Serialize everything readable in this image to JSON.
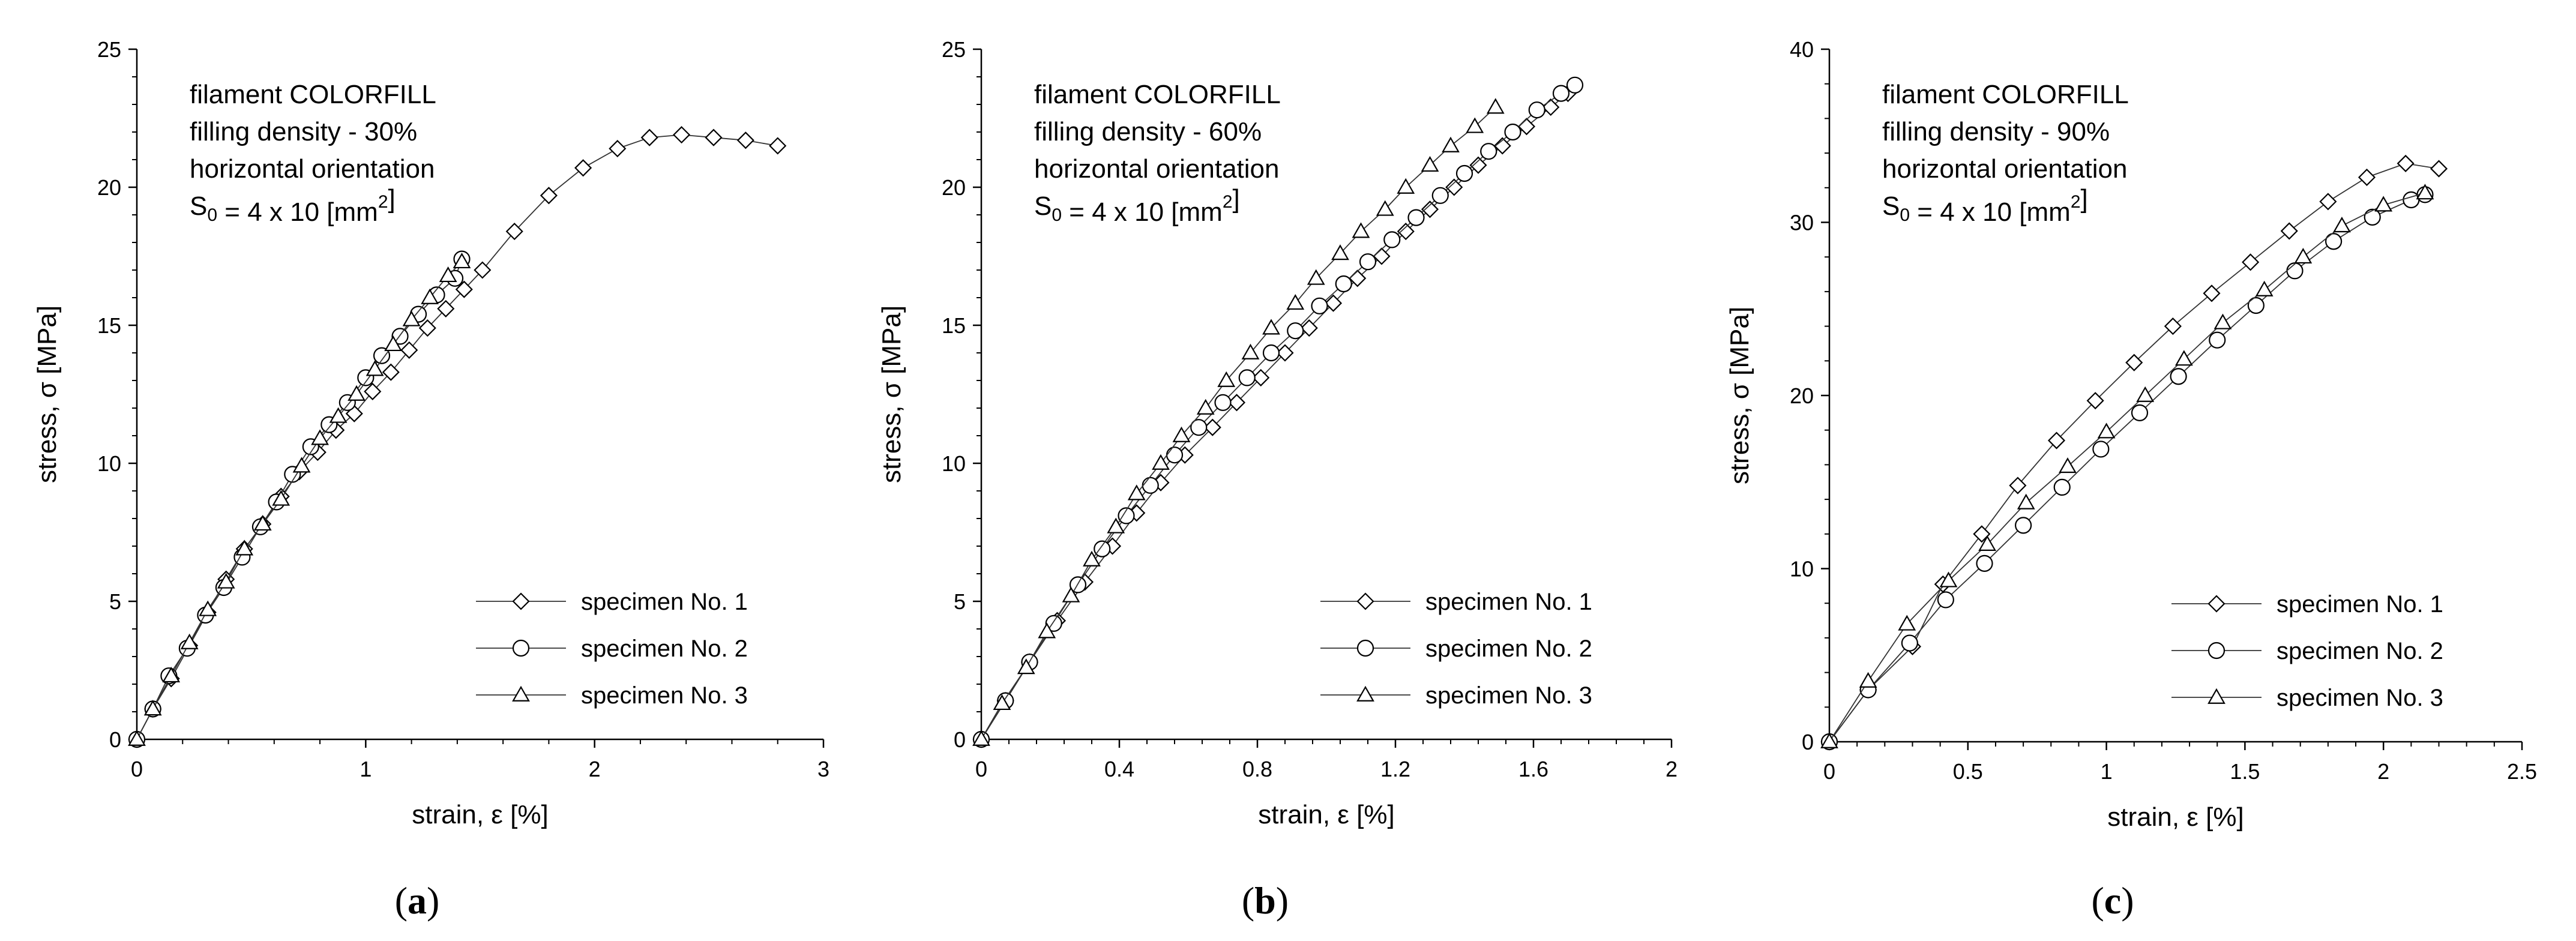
{
  "legend_labels": [
    "specimen No. 1",
    "specimen No. 2",
    "specimen No. 3"
  ],
  "chart_data": [
    {
      "type": "line",
      "caption": "a",
      "info": [
        "filament COLORFILL",
        "filling density - 30%",
        "horizontal orientation",
        "S",
        "0",
        " = 4 x 10 [mm",
        "2",
        "]"
      ],
      "xlabel": "strain, ε [%]",
      "ylabel": "stress, σ [MPa]",
      "xlim": [
        0,
        3
      ],
      "ylim": [
        0,
        25
      ],
      "xticks": [
        0,
        1,
        2,
        3
      ],
      "xtick_labels": [
        "0",
        "1",
        "2",
        "3"
      ],
      "yticks": [
        0,
        5,
        10,
        15,
        20,
        25
      ],
      "ytick_labels": [
        "0",
        "5",
        "10",
        "15",
        "20",
        "25"
      ],
      "series": [
        {
          "name": "specimen No. 1",
          "marker": "diamond",
          "x": [
            0,
            0.07,
            0.15,
            0.23,
            0.31,
            0.39,
            0.47,
            0.55,
            0.63,
            0.71,
            0.79,
            0.87,
            0.95,
            1.03,
            1.11,
            1.19,
            1.27,
            1.35,
            1.43,
            1.51,
            1.65,
            1.8,
            1.95,
            2.1,
            2.24,
            2.38,
            2.52,
            2.66,
            2.8
          ],
          "y": [
            0,
            1.1,
            2.2,
            3.4,
            4.6,
            5.8,
            6.9,
            7.8,
            8.8,
            9.7,
            10.4,
            11.2,
            11.8,
            12.6,
            13.3,
            14.1,
            14.9,
            15.6,
            16.3,
            17.0,
            18.4,
            19.7,
            20.7,
            21.4,
            21.8,
            21.9,
            21.8,
            21.7,
            21.5
          ]
        },
        {
          "name": "specimen No. 2",
          "marker": "circle",
          "x": [
            0,
            0.07,
            0.14,
            0.22,
            0.3,
            0.38,
            0.46,
            0.54,
            0.61,
            0.68,
            0.76,
            0.84,
            0.92,
            1.0,
            1.07,
            1.15,
            1.23,
            1.31,
            1.39,
            1.42
          ],
          "y": [
            0,
            1.1,
            2.3,
            3.3,
            4.5,
            5.5,
            6.6,
            7.7,
            8.6,
            9.6,
            10.6,
            11.4,
            12.2,
            13.1,
            13.9,
            14.6,
            15.4,
            16.1,
            16.7,
            17.4
          ]
        },
        {
          "name": "specimen No. 3",
          "marker": "triangle",
          "x": [
            0,
            0.07,
            0.15,
            0.23,
            0.31,
            0.39,
            0.47,
            0.55,
            0.63,
            0.72,
            0.8,
            0.88,
            0.96,
            1.04,
            1.12,
            1.2,
            1.28,
            1.36,
            1.42
          ],
          "y": [
            0,
            1.1,
            2.3,
            3.5,
            4.7,
            5.7,
            6.9,
            7.8,
            8.7,
            9.9,
            10.9,
            11.7,
            12.5,
            13.4,
            14.3,
            15.2,
            16.0,
            16.8,
            17.3
          ]
        }
      ]
    },
    {
      "type": "line",
      "caption": "b",
      "info": [
        "filament COLORFILL",
        "filling density - 60%",
        "horizontal orientation",
        "S",
        "0",
        " = 4 x 10 [mm",
        "2",
        "]"
      ],
      "xlabel": "strain, ε [%]",
      "ylabel": "stress, σ [MPa]",
      "xlim": [
        0,
        2
      ],
      "ylim": [
        0,
        25
      ],
      "xticks": [
        0,
        0.4,
        0.8,
        1.2,
        1.6,
        2.0
      ],
      "xtick_labels": [
        "0",
        "0.4",
        "0.8",
        "1.2",
        "1.6",
        "2"
      ],
      "yticks": [
        0,
        5,
        10,
        15,
        20,
        25
      ],
      "ytick_labels": [
        "0",
        "5",
        "10",
        "15",
        "20",
        "25"
      ],
      "series": [
        {
          "name": "specimen No. 1",
          "marker": "diamond",
          "x": [
            0,
            0.07,
            0.14,
            0.22,
            0.3,
            0.38,
            0.45,
            0.52,
            0.59,
            0.67,
            0.74,
            0.81,
            0.88,
            0.95,
            1.02,
            1.09,
            1.16,
            1.23,
            1.3,
            1.37,
            1.44,
            1.51,
            1.58,
            1.65,
            1.7
          ],
          "y": [
            0,
            1.4,
            2.8,
            4.3,
            5.7,
            7.0,
            8.2,
            9.3,
            10.3,
            11.3,
            12.2,
            13.1,
            14.0,
            14.9,
            15.8,
            16.7,
            17.5,
            18.4,
            19.2,
            20.0,
            20.8,
            21.5,
            22.2,
            22.9,
            23.4
          ]
        },
        {
          "name": "specimen No. 2",
          "marker": "circle",
          "x": [
            0,
            0.07,
            0.14,
            0.21,
            0.28,
            0.35,
            0.42,
            0.49,
            0.56,
            0.63,
            0.7,
            0.77,
            0.84,
            0.91,
            0.98,
            1.05,
            1.12,
            1.19,
            1.26,
            1.33,
            1.4,
            1.47,
            1.54,
            1.61,
            1.68,
            1.72
          ],
          "y": [
            0,
            1.4,
            2.8,
            4.2,
            5.6,
            6.9,
            8.1,
            9.2,
            10.3,
            11.3,
            12.2,
            13.1,
            14.0,
            14.8,
            15.7,
            16.5,
            17.3,
            18.1,
            18.9,
            19.7,
            20.5,
            21.3,
            22.0,
            22.8,
            23.4,
            23.7
          ]
        },
        {
          "name": "specimen No. 3",
          "marker": "triangle",
          "x": [
            0,
            0.06,
            0.13,
            0.19,
            0.26,
            0.32,
            0.39,
            0.45,
            0.52,
            0.58,
            0.65,
            0.71,
            0.78,
            0.84,
            0.91,
            0.97,
            1.04,
            1.1,
            1.17,
            1.23,
            1.3,
            1.36,
            1.43,
            1.49
          ],
          "y": [
            0,
            1.3,
            2.6,
            3.9,
            5.2,
            6.5,
            7.7,
            8.9,
            10.0,
            11.0,
            12.0,
            13.0,
            14.0,
            14.9,
            15.8,
            16.7,
            17.6,
            18.4,
            19.2,
            20.0,
            20.8,
            21.5,
            22.2,
            22.9
          ]
        }
      ]
    },
    {
      "type": "line",
      "caption": "c",
      "info": [
        "filament COLORFILL",
        "filling density - 90%",
        "horizontal orientation",
        "S",
        "0",
        " = 4 x 10 [mm",
        "2",
        "]"
      ],
      "xlabel": "strain, ε [%]",
      "ylabel": "stress, σ [MPa]",
      "xlim": [
        0,
        2.5
      ],
      "ylim": [
        0,
        40
      ],
      "xticks": [
        0,
        0.5,
        1.0,
        1.5,
        2.0,
        2.5
      ],
      "xtick_labels": [
        "0",
        "0.5",
        "1",
        "1.5",
        "2",
        "2.5"
      ],
      "yticks": [
        0,
        10,
        20,
        30,
        40
      ],
      "ytick_labels": [
        "0",
        "10",
        "20",
        "30",
        "40"
      ],
      "series": [
        {
          "name": "specimen No. 1",
          "marker": "diamond",
          "x": [
            0,
            0.14,
            0.3,
            0.41,
            0.55,
            0.68,
            0.82,
            0.96,
            1.1,
            1.24,
            1.38,
            1.52,
            1.66,
            1.8,
            1.94,
            2.08,
            2.2
          ],
          "y": [
            0,
            3.0,
            5.5,
            9.1,
            12.0,
            14.8,
            17.4,
            19.7,
            21.9,
            24.0,
            25.9,
            27.7,
            29.5,
            31.2,
            32.6,
            33.4,
            33.1
          ]
        },
        {
          "name": "specimen No. 2",
          "marker": "circle",
          "x": [
            0,
            0.14,
            0.29,
            0.42,
            0.56,
            0.7,
            0.84,
            0.98,
            1.12,
            1.26,
            1.4,
            1.54,
            1.68,
            1.82,
            1.96,
            2.1,
            2.15
          ],
          "y": [
            0,
            3.0,
            5.7,
            8.2,
            10.3,
            12.5,
            14.7,
            16.9,
            19.0,
            21.1,
            23.2,
            25.2,
            27.2,
            28.9,
            30.3,
            31.3,
            31.6
          ]
        },
        {
          "name": "specimen No. 3",
          "marker": "triangle",
          "x": [
            0,
            0.14,
            0.28,
            0.43,
            0.57,
            0.71,
            0.86,
            1.0,
            1.14,
            1.28,
            1.42,
            1.57,
            1.71,
            1.85,
            2.0,
            2.15
          ],
          "y": [
            0,
            3.5,
            6.8,
            9.3,
            11.4,
            13.8,
            15.9,
            17.9,
            20.0,
            22.1,
            24.2,
            26.1,
            28.0,
            29.8,
            31.0,
            31.7
          ]
        }
      ]
    }
  ]
}
